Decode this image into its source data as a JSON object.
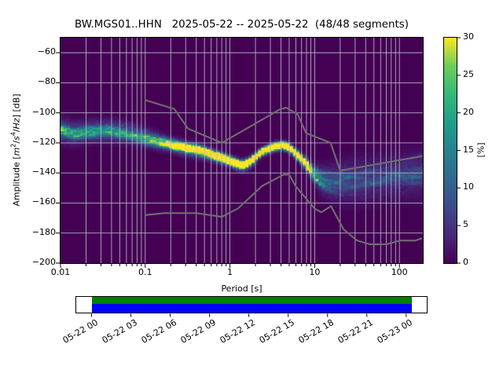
{
  "title": "BW.MGS01..HHN   2025-05-22 -- 2025-05-22  (48/48 segments)",
  "axes": {
    "xlabel": "Period [s]",
    "ylabel": "Amplitude [m²/s⁴/Hz] [dB]",
    "ylabel_html": "Amplitude [<i>m</i><sup>2</sup>/<i>s</i><sup>4</sup>/<i>Hz</i>] [dB]",
    "xticks": [
      {
        "p": 0.01,
        "label": "0.01"
      },
      {
        "p": 0.1,
        "label": "0.1"
      },
      {
        "p": 1,
        "label": "1"
      },
      {
        "p": 10,
        "label": "10"
      },
      {
        "p": 100,
        "label": "100"
      }
    ],
    "yticks": [
      {
        "db": -60,
        "label": "−60"
      },
      {
        "db": -80,
        "label": "−80"
      },
      {
        "db": -100,
        "label": "−100"
      },
      {
        "db": -120,
        "label": "−120"
      },
      {
        "db": -140,
        "label": "−140"
      },
      {
        "db": -160,
        "label": "−160"
      },
      {
        "db": -180,
        "label": "−180"
      },
      {
        "db": -200,
        "label": "−200"
      }
    ]
  },
  "colorbar": {
    "label": "[%]",
    "ticks": [
      0,
      5,
      10,
      15,
      20,
      25,
      30
    ],
    "vmin": 0,
    "vmax": 30,
    "colormap": "viridis"
  },
  "timeline": {
    "tick_hours": [
      0,
      3,
      6,
      9,
      12,
      15,
      18,
      21,
      24
    ],
    "tick_labels": [
      "05-22 00",
      "05-22 03",
      "05-22 06",
      "05-22 09",
      "05-22 12",
      "05-22 15",
      "05-22 18",
      "05-22 21",
      "05-23 00"
    ],
    "axis_min_hour": -1.2,
    "axis_max_hour": 25.65,
    "coverage_start_hour": 0,
    "coverage_end_hour": 24.44
  },
  "colors": {
    "figure_bg": "#ffffff",
    "heatmap_bg": "#440154",
    "grid": "#bfbdcc",
    "noise_model": "#6e6e6e",
    "coverage_green": "#008000",
    "coverage_blue": "#0000ff",
    "spine": "#000000",
    "text": "#000000"
  },
  "chart_data": {
    "type": "heatmap",
    "title": "BW.MGS01..HHN   2025-05-22 -- 2025-05-22  (48/48 segments)",
    "x_axis": {
      "label": "Period [s]",
      "scale": "log",
      "min": 0.01,
      "max": 185.6
    },
    "y_axis": {
      "label": "Amplitude [m^2/s^4/Hz] [dB]",
      "min": -200,
      "max": -50,
      "tick_step": 20
    },
    "value_axis": {
      "label": "[%]",
      "min": 0,
      "max": 30
    },
    "grid": true,
    "legend_position": "none",
    "period_bin_log10_width": 0.0376,
    "db_bin_width": 1.0,
    "mode_curve": {
      "periods": [
        0.01,
        0.014,
        0.022,
        0.035,
        0.055,
        0.085,
        0.13,
        0.2,
        0.3,
        0.45,
        0.65,
        0.9,
        1.15,
        1.4,
        1.75,
        2.35,
        3.3,
        4.2,
        5.0,
        6.0,
        7.0,
        8.1,
        9.7,
        12,
        16,
        22,
        32,
        60,
        110,
        186
      ],
      "db": [
        -111,
        -113.5,
        -112,
        -111.5,
        -112.5,
        -115,
        -118,
        -121,
        -123.5,
        -125.5,
        -128.5,
        -131.2,
        -133.5,
        -135.2,
        -132.5,
        -126,
        -122.5,
        -121.6,
        -123,
        -127,
        -130.5,
        -134.7,
        -140,
        -144.5,
        -146,
        -145.5,
        -144.8,
        -143.5,
        -142,
        -140.5
      ],
      "peak_percent": [
        14,
        15,
        16,
        17,
        17,
        18,
        20,
        23,
        25,
        26,
        27,
        28,
        29,
        30,
        30,
        30,
        30,
        30,
        30,
        30,
        29,
        27,
        20,
        13,
        10,
        9,
        8.5,
        8,
        8,
        8
      ],
      "spread_db": [
        5.5,
        5.0,
        4.5,
        4.5,
        4.5,
        4.0,
        3.5,
        3.0,
        3.0,
        3.0,
        2.5,
        2.5,
        2.5,
        2.5,
        2.5,
        2.0,
        2.0,
        2.0,
        2.0,
        2.2,
        2.5,
        3.0,
        4.0,
        6.0,
        8.0,
        9.0,
        10,
        10,
        10,
        10
      ]
    },
    "noise_models": {
      "nlnm": [
        [
          0.1,
          -168.0
        ],
        [
          0.17,
          -166.7
        ],
        [
          0.4,
          -166.7
        ],
        [
          0.8,
          -169.2
        ],
        [
          1.24,
          -163.7
        ],
        [
          2.4,
          -148.6
        ],
        [
          4.3,
          -141.1
        ],
        [
          5.0,
          -141.1
        ],
        [
          6.0,
          -149.0
        ],
        [
          10.0,
          -163.8
        ],
        [
          12.0,
          -166.2
        ],
        [
          15.6,
          -162.1
        ],
        [
          21.9,
          -177.5
        ],
        [
          31.6,
          -185.0
        ],
        [
          45.0,
          -187.5
        ],
        [
          70.0,
          -187.5
        ],
        [
          101.0,
          -185.0
        ],
        [
          154.0,
          -185.0
        ],
        [
          185.6,
          -183.5
        ]
      ],
      "nhnm": [
        [
          0.1,
          -91.5
        ],
        [
          0.22,
          -97.4
        ],
        [
          0.32,
          -110.5
        ],
        [
          0.8,
          -120.0
        ],
        [
          3.8,
          -98.0
        ],
        [
          4.6,
          -96.5
        ],
        [
          6.3,
          -101.0
        ],
        [
          7.9,
          -113.5
        ],
        [
          15.4,
          -120.0
        ],
        [
          20.0,
          -138.5
        ],
        [
          185.6,
          -128.8
        ]
      ]
    }
  }
}
